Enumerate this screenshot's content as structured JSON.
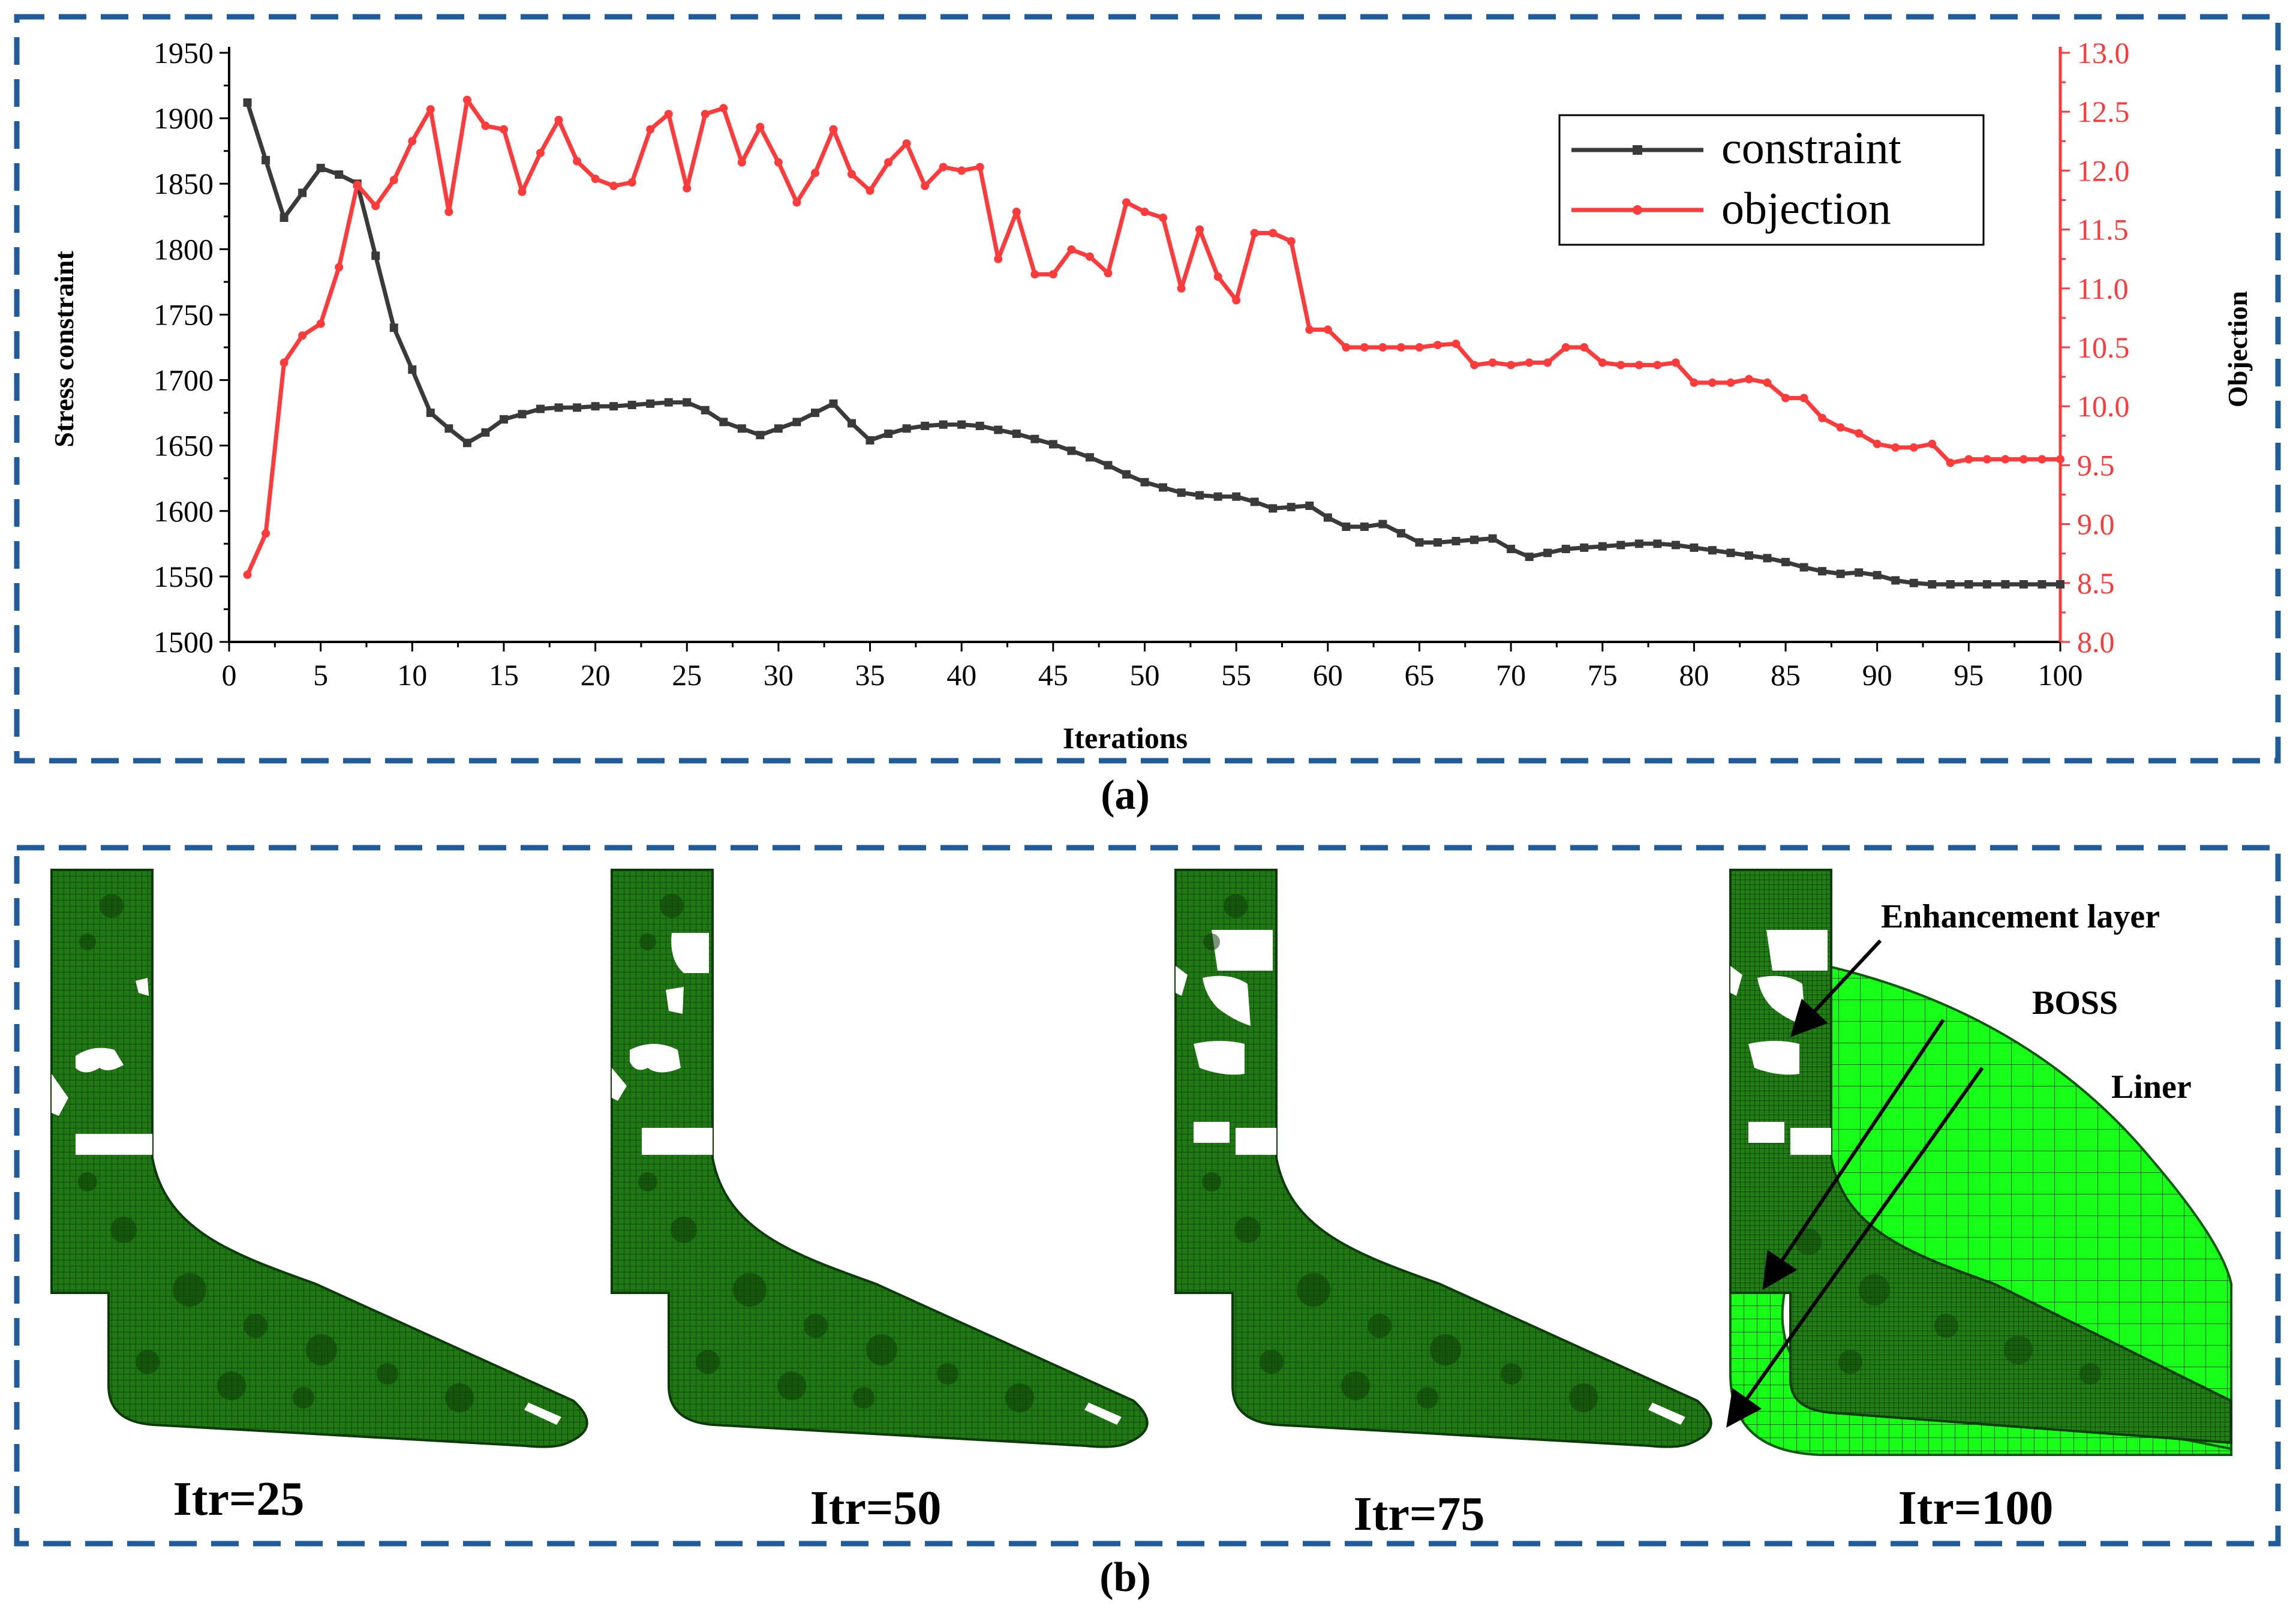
{
  "chart_data": {
    "type": "line",
    "xlabel": "Iterations",
    "ylabel_left": "Stress constraint",
    "ylabel_right": "Objection",
    "xlim": [
      0,
      100
    ],
    "ylim_left": [
      1500,
      1950
    ],
    "ylim_right": [
      8.0,
      13.0
    ],
    "x_ticks": [
      "0",
      "5",
      "10",
      "15",
      "20",
      "25",
      "30",
      "35",
      "40",
      "45",
      "50",
      "55",
      "60",
      "65",
      "70",
      "75",
      "80",
      "85",
      "90",
      "95",
      "100"
    ],
    "y_left_ticks": [
      "1500",
      "1550",
      "1600",
      "1650",
      "1700",
      "1750",
      "1800",
      "1850",
      "1900",
      "1950"
    ],
    "y_right_ticks": [
      "8.0",
      "8.5",
      "9.0",
      "9.5",
      "10.0",
      "10.5",
      "11.0",
      "11.5",
      "12.0",
      "12.5",
      "13.0"
    ],
    "legend_position": "top-right",
    "grid": false,
    "series": [
      {
        "name": "constraint",
        "axis": "left",
        "color": "#3a3a3a",
        "x": [
          1,
          2,
          3,
          4,
          5,
          6,
          7,
          8,
          9,
          10,
          11,
          12,
          13,
          14,
          15,
          16,
          17,
          18,
          19,
          20,
          21,
          22,
          23,
          24,
          25,
          26,
          27,
          28,
          29,
          30,
          31,
          32,
          33,
          34,
          35,
          36,
          37,
          38,
          39,
          40,
          41,
          42,
          43,
          44,
          45,
          46,
          47,
          48,
          49,
          50,
          51,
          52,
          53,
          54,
          55,
          56,
          57,
          58,
          59,
          60,
          61,
          62,
          63,
          64,
          65,
          66,
          67,
          68,
          69,
          70,
          71,
          72,
          73,
          74,
          75,
          76,
          77,
          78,
          79,
          80,
          81,
          82,
          83,
          84,
          85,
          86,
          87,
          88,
          89,
          90,
          91,
          92,
          93,
          94,
          95,
          96,
          97,
          98,
          99,
          100
        ],
        "values": [
          1912,
          1868,
          1824,
          1843,
          1862,
          1857,
          1850,
          1795,
          1740,
          1708,
          1675,
          1663,
          1652,
          1660,
          1670,
          1674,
          1678,
          1679,
          1679,
          1680,
          1680,
          1681,
          1682,
          1683,
          1683,
          1677,
          1668,
          1663,
          1658,
          1663,
          1668,
          1675,
          1682,
          1667,
          1654,
          1659,
          1663,
          1665,
          1666,
          1666,
          1665,
          1662,
          1659,
          1655,
          1651,
          1646,
          1641,
          1635,
          1628,
          1622,
          1618,
          1614,
          1612,
          1611,
          1611,
          1607,
          1602,
          1603,
          1604,
          1595,
          1588,
          1588,
          1590,
          1583,
          1576,
          1576,
          1577,
          1578,
          1579,
          1571,
          1565,
          1568,
          1571,
          1572,
          1573,
          1574,
          1575,
          1575,
          1574,
          1572,
          1570,
          1568,
          1566,
          1564,
          1561,
          1557,
          1554,
          1552,
          1553,
          1551,
          1547,
          1545,
          1544,
          1544,
          1544,
          1544,
          1544,
          1544,
          1544,
          1544
        ]
      },
      {
        "name": "objection",
        "axis": "right",
        "color": "#ff3b3b",
        "x": [
          1,
          2,
          3,
          4,
          5,
          6,
          7,
          8,
          9,
          10,
          11,
          12,
          13,
          14,
          15,
          16,
          17,
          18,
          19,
          20,
          21,
          22,
          23,
          24,
          25,
          26,
          27,
          28,
          29,
          30,
          31,
          32,
          33,
          34,
          35,
          36,
          37,
          38,
          39,
          40,
          41,
          42,
          43,
          44,
          45,
          46,
          47,
          48,
          49,
          50,
          51,
          52,
          53,
          54,
          55,
          56,
          57,
          58,
          59,
          60,
          61,
          62,
          63,
          64,
          65,
          66,
          67,
          68,
          69,
          70,
          71,
          72,
          73,
          74,
          75,
          76,
          77,
          78,
          79,
          80,
          81,
          82,
          83,
          84,
          85,
          86,
          87,
          88,
          89,
          90,
          91,
          92,
          93,
          94,
          95,
          96,
          97,
          98,
          99,
          100
        ],
        "values": [
          8.57,
          8.92,
          10.37,
          10.6,
          10.7,
          11.18,
          11.88,
          11.7,
          11.92,
          12.25,
          12.52,
          11.65,
          12.6,
          12.38,
          12.35,
          11.82,
          12.15,
          12.43,
          12.08,
          11.93,
          11.87,
          11.9,
          12.35,
          12.48,
          11.85,
          12.48,
          12.53,
          12.07,
          12.37,
          12.07,
          11.73,
          11.98,
          12.35,
          11.97,
          11.83,
          12.07,
          12.23,
          11.87,
          12.03,
          12.0,
          12.03,
          11.25,
          11.65,
          11.12,
          11.12,
          11.33,
          11.27,
          11.13,
          11.73,
          11.65,
          11.6,
          11.0,
          11.5,
          11.1,
          10.9,
          11.47,
          11.47,
          11.4,
          10.65,
          10.65,
          10.5,
          10.5,
          10.5,
          10.5,
          10.5,
          10.52,
          10.53,
          10.35,
          10.37,
          10.35,
          10.37,
          10.37,
          10.5,
          10.5,
          10.37,
          10.35,
          10.35,
          10.35,
          10.37,
          10.2,
          10.2,
          10.2,
          10.23,
          10.2,
          10.07,
          10.07,
          9.9,
          9.82,
          9.77,
          9.68,
          9.65,
          9.65,
          9.68,
          9.52,
          9.55,
          9.55,
          9.55,
          9.55,
          9.55,
          9.55
        ]
      }
    ]
  },
  "panel_a": {
    "caption": "(a)"
  },
  "panel_b": {
    "caption": "(b)",
    "labels": [
      "Itr=25",
      "Itr=50",
      "Itr=75",
      "Itr=100"
    ],
    "annotations": [
      "Enhancement layer",
      "BOSS",
      "Liner"
    ],
    "mesh_color": "#1f7a12",
    "layer_color": "#19ff19"
  }
}
